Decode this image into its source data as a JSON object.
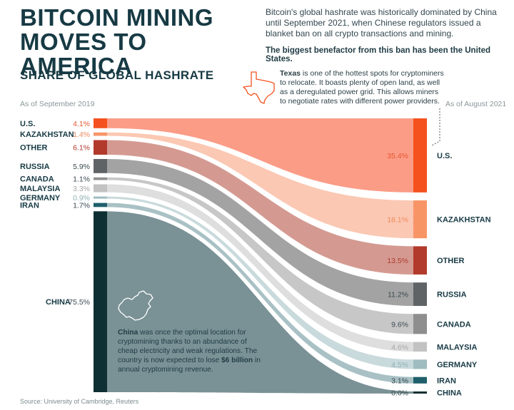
{
  "header": {
    "title_line1": "BITCOIN MINING",
    "title_line2": "MOVES TO AMERICA",
    "intro": "Bitcoin's global hashrate was historically dominated by China until September 2021, when Chinese regulators issued a blanket ban on all crypto transactions and mining.",
    "intro_bold": "The biggest benefactor from this ban has been the United States.",
    "subtitle": "SHARE OF GLOBAL HASHRATE"
  },
  "left_period": "As of September 2019",
  "right_period": "As of August 2021",
  "texas_note": {
    "bold": "Texas",
    "text": " is one of the hottest spots for cryptominers to relocate. It boasts plenty of open land, as well as a deregulated power grid. This allows miners to negotiate rates with different power providers."
  },
  "china_note": {
    "bold1": "China",
    "text1": " was once the optimal location for cryptomining thanks to an abundance of cheap electricity and weak regulations. The country is now expected to lose ",
    "bold2": "$6 billion",
    "text2": " in annual cryptomining revenue."
  },
  "source": "Source: University of Cambridge, Reuters",
  "icons": {
    "texas": "texas-map-icon",
    "china": "china-map-icon"
  },
  "chart_data": {
    "type": "sankey",
    "title": "SHARE OF GLOBAL HASHRATE",
    "unit": "%",
    "left_label": "As of September 2019",
    "right_label": "As of August 2021",
    "countries": [
      {
        "name": "U.S.",
        "sep_2019": 4.1,
        "aug_2021": 35.4,
        "left_label": "4.1%",
        "right_label": "35.4%",
        "color": "#fb9c87",
        "bar_color": "#f4511e",
        "left_value_color": "#e8572e",
        "right_value_color": "#e8572e"
      },
      {
        "name": "KAZAKHSTAN",
        "sep_2019": 1.4,
        "aug_2021": 18.1,
        "left_label": "1.4%",
        "right_label": "18.1%",
        "color": "#fbc8b3",
        "bar_color": "#f79567",
        "left_value_color": "#f08a5d",
        "right_value_color": "#f08a5d"
      },
      {
        "name": "OTHER",
        "sep_2019": 6.1,
        "aug_2021": 13.5,
        "left_label": "6.1%",
        "right_label": "13.5%",
        "color": "#d49a92",
        "bar_color": "#b23a2c",
        "left_value_color": "#b23a2c",
        "right_value_color": "#b23a2c"
      },
      {
        "name": "RUSSIA",
        "sep_2019": 5.9,
        "aug_2021": 11.2,
        "left_label": "5.9%",
        "right_label": "11.2%",
        "color": "#a3a3a3",
        "bar_color": "#5f6366",
        "left_value_color": "#3a4a50",
        "right_value_color": "#3a4a50"
      },
      {
        "name": "CANADA",
        "sep_2019": 1.1,
        "aug_2021": 9.6,
        "left_label": "1.1%",
        "right_label": "9.6%",
        "color": "#c7c7c7",
        "bar_color": "#8e8e8e",
        "left_value_color": "#3a4a50",
        "right_value_color": "#3a4a50"
      },
      {
        "name": "MALAYSIA",
        "sep_2019": 3.3,
        "aug_2021": 4.6,
        "left_label": "3.3%",
        "right_label": "4.6%",
        "color": "#dedede",
        "bar_color": "#c2c2c2",
        "left_value_color": "#a6a6a6",
        "right_value_color": "#a6a6a6"
      },
      {
        "name": "GERMANY",
        "sep_2019": 0.9,
        "aug_2021": 4.5,
        "left_label": "0.9%",
        "right_label": "4.5%",
        "color": "#c9dadc",
        "bar_color": "#9fbcc0",
        "left_value_color": "#8fb0b5",
        "right_value_color": "#8fb0b5"
      },
      {
        "name": "IRAN",
        "sep_2019": 1.7,
        "aug_2021": 3.1,
        "left_label": "1.7%",
        "right_label": "3.1%",
        "color": "#a9c1c5",
        "bar_color": "#1f5f6b",
        "left_value_color": "#3a4a50",
        "right_value_color": "#3a4a50"
      },
      {
        "name": "CHINA",
        "sep_2019": 75.5,
        "aug_2021": 0.0,
        "left_label": "75.5%",
        "right_label": "0.0%",
        "color": "#7a9196",
        "bar_color": "#0e2f33",
        "left_value_color": "#3a4a50",
        "right_value_color": "#3a4a50"
      }
    ]
  }
}
